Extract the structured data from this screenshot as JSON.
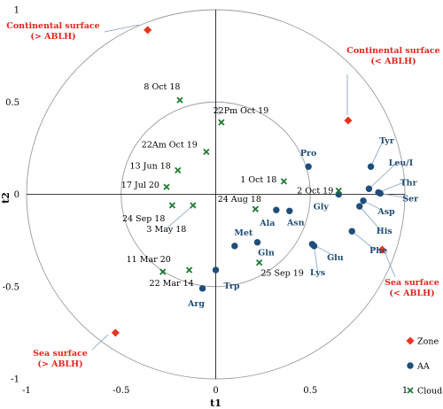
{
  "chart_data": {
    "type": "scatter",
    "title": "",
    "xlabel": "t1",
    "ylabel": "t2",
    "xlim": [
      -1,
      1
    ],
    "ylim": [
      -1,
      1
    ],
    "x_ticks": [
      "-1",
      "-0.5",
      "0",
      "0.5",
      "1"
    ],
    "y_ticks": [
      "1",
      "0.5",
      "0",
      "-0.5",
      "-1"
    ],
    "circles": [
      1.0,
      0.5
    ],
    "grid": false,
    "legend": {
      "position": "bottom-right",
      "entries": [
        {
          "name": "Zone",
          "color": "#e8341f",
          "marker": "diamond"
        },
        {
          "name": "AA",
          "color": "#1f4e79",
          "marker": "circle"
        },
        {
          "name": "Cloud",
          "color": "#1e7a33",
          "marker": "x"
        }
      ]
    },
    "series": [
      {
        "name": "Zone",
        "points": [
          {
            "label": "Continental surface\n(> ABLH)",
            "x": -0.36,
            "y": 0.89
          },
          {
            "label": "Continental surface\n(< ABLH)",
            "x": 0.7,
            "y": 0.4
          },
          {
            "label": "Sea surface\n(< ABLH)",
            "x": 0.88,
            "y": -0.3
          },
          {
            "label": "Sea surface\n(> ABLH)",
            "x": -0.53,
            "y": -0.75
          }
        ]
      },
      {
        "name": "AA",
        "points": [
          {
            "label": "Tyr",
            "x": 0.82,
            "y": 0.15
          },
          {
            "label": "Leu/I",
            "x": 0.81,
            "y": 0.03
          },
          {
            "label": "Thr",
            "x": 0.86,
            "y": 0.01
          },
          {
            "label": "Ser",
            "x": 0.87,
            "y": 0.005
          },
          {
            "label": "Asp",
            "x": 0.78,
            "y": -0.035
          },
          {
            "label": "His",
            "x": 0.76,
            "y": -0.065
          },
          {
            "label": "Phe",
            "x": 0.72,
            "y": -0.2
          },
          {
            "label": "Pro",
            "x": 0.49,
            "y": 0.15
          },
          {
            "label": "Gly",
            "x": 0.65,
            "y": 0.0
          },
          {
            "label": "Ala",
            "x": 0.32,
            "y": -0.085
          },
          {
            "label": "Asn",
            "x": 0.39,
            "y": -0.09
          },
          {
            "label": "Gln",
            "x": 0.22,
            "y": -0.26
          },
          {
            "label": "Glu",
            "x": 0.51,
            "y": -0.27
          },
          {
            "label": "Lys",
            "x": 0.52,
            "y": -0.28
          },
          {
            "label": "Met",
            "x": 0.1,
            "y": -0.28
          },
          {
            "label": "Trp",
            "x": 0.0,
            "y": -0.41
          },
          {
            "label": "Arg",
            "x": -0.07,
            "y": -0.51
          }
        ]
      },
      {
        "name": "Cloud",
        "points": [
          {
            "label": "8 Oct 18",
            "x": -0.19,
            "y": 0.51
          },
          {
            "label": "22Pm Oct 19",
            "x": 0.03,
            "y": 0.39
          },
          {
            "label": "22Am Oct 19",
            "x": -0.05,
            "y": 0.23
          },
          {
            "label": "13 Jun 18",
            "x": -0.2,
            "y": 0.13
          },
          {
            "label": "17 Jul 20",
            "x": -0.26,
            "y": 0.04
          },
          {
            "label": "1 Oct 18",
            "x": 0.36,
            "y": 0.07
          },
          {
            "label": "2 Oct 19",
            "x": 0.65,
            "y": 0.02
          },
          {
            "label": "24 Aug 18",
            "x": 0.21,
            "y": -0.08
          },
          {
            "label": "24 Sep 18",
            "x": -0.23,
            "y": -0.06
          },
          {
            "label": "3 May 18",
            "x": -0.12,
            "y": -0.06
          },
          {
            "label": "11 Mar 20",
            "x": -0.28,
            "y": -0.42
          },
          {
            "label": "22 Mar 14",
            "x": -0.14,
            "y": -0.41
          },
          {
            "label": "25 Sep 19",
            "x": 0.23,
            "y": -0.37
          }
        ]
      }
    ]
  }
}
